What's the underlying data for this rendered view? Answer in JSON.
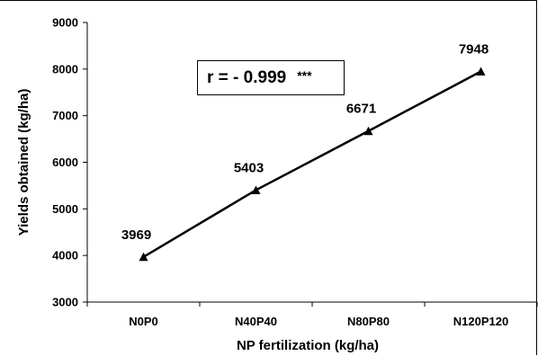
{
  "chart_data": {
    "type": "line",
    "categories": [
      "N0P0",
      "N40P40",
      "N80P80",
      "N120P120"
    ],
    "series": [
      {
        "values": [
          3969,
          5403,
          6671,
          7948
        ]
      }
    ],
    "data_labels": [
      "3969",
      "5403",
      "6671",
      "7948"
    ],
    "xlabel": "NP fertilization (kg/ha)",
    "ylabel": "Yields obtained (kg/ha)",
    "ylim": [
      3000,
      9000
    ],
    "yticks": [
      3000,
      4000,
      5000,
      6000,
      7000,
      8000,
      9000
    ],
    "grid": false,
    "marker": "triangle",
    "line_color": "#000000",
    "annotation": {
      "value": "r = - 0.999",
      "significance": "***"
    }
  }
}
